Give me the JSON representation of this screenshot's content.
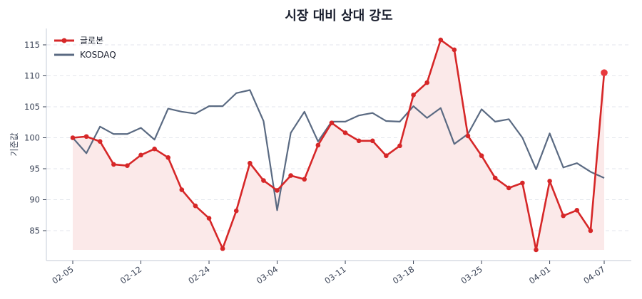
{
  "chart_data": {
    "type": "line",
    "title": "시장 대비 상대 강도",
    "xlabel": "",
    "ylabel": "기준값",
    "ylim": [
      80.8,
      117.5
    ],
    "yticks": [
      85,
      90,
      95,
      100,
      105,
      110,
      115
    ],
    "grid": "horizontal-dashed",
    "legend_position": "upper-left",
    "x_tick_labels": [
      {
        "index": 0,
        "label": "02-05"
      },
      {
        "index": 5,
        "label": "02-12"
      },
      {
        "index": 10,
        "label": "02-24"
      },
      {
        "index": 15,
        "label": "03-04"
      },
      {
        "index": 20,
        "label": "03-11"
      },
      {
        "index": 25,
        "label": "03-18"
      },
      {
        "index": 30,
        "label": "03-25"
      },
      {
        "index": 35,
        "label": "04-01"
      },
      {
        "index": 39,
        "label": "04-07"
      }
    ],
    "n_points": 40,
    "series": [
      {
        "name": "글로본",
        "color": "#d62728",
        "fill_color": "#fbe9e9",
        "markers": true,
        "values": [
          100.0,
          100.2,
          99.4,
          95.7,
          95.5,
          97.2,
          98.2,
          96.8,
          91.6,
          89.0,
          87.0,
          82.1,
          88.2,
          95.9,
          93.1,
          91.5,
          93.9,
          93.3,
          98.8,
          102.4,
          100.8,
          99.5,
          99.5,
          97.1,
          98.7,
          106.9,
          108.9,
          115.8,
          114.2,
          100.3,
          97.1,
          93.5,
          91.9,
          92.7,
          81.9,
          93.0,
          87.4,
          88.3,
          85.0,
          110.5
        ]
      },
      {
        "name": "KOSDAQ",
        "color": "#5a6a82",
        "markers": false,
        "values": [
          100.0,
          97.5,
          101.8,
          100.6,
          100.6,
          101.6,
          99.7,
          104.7,
          104.2,
          103.9,
          105.1,
          105.1,
          107.2,
          107.7,
          102.7,
          88.3,
          100.8,
          104.2,
          99.4,
          102.6,
          102.6,
          103.6,
          104.0,
          102.7,
          102.6,
          105.1,
          103.2,
          104.8,
          99.0,
          100.6,
          104.6,
          102.6,
          103.0,
          100.0,
          94.9,
          100.7,
          95.2,
          95.9,
          94.5,
          93.5
        ]
      }
    ]
  }
}
